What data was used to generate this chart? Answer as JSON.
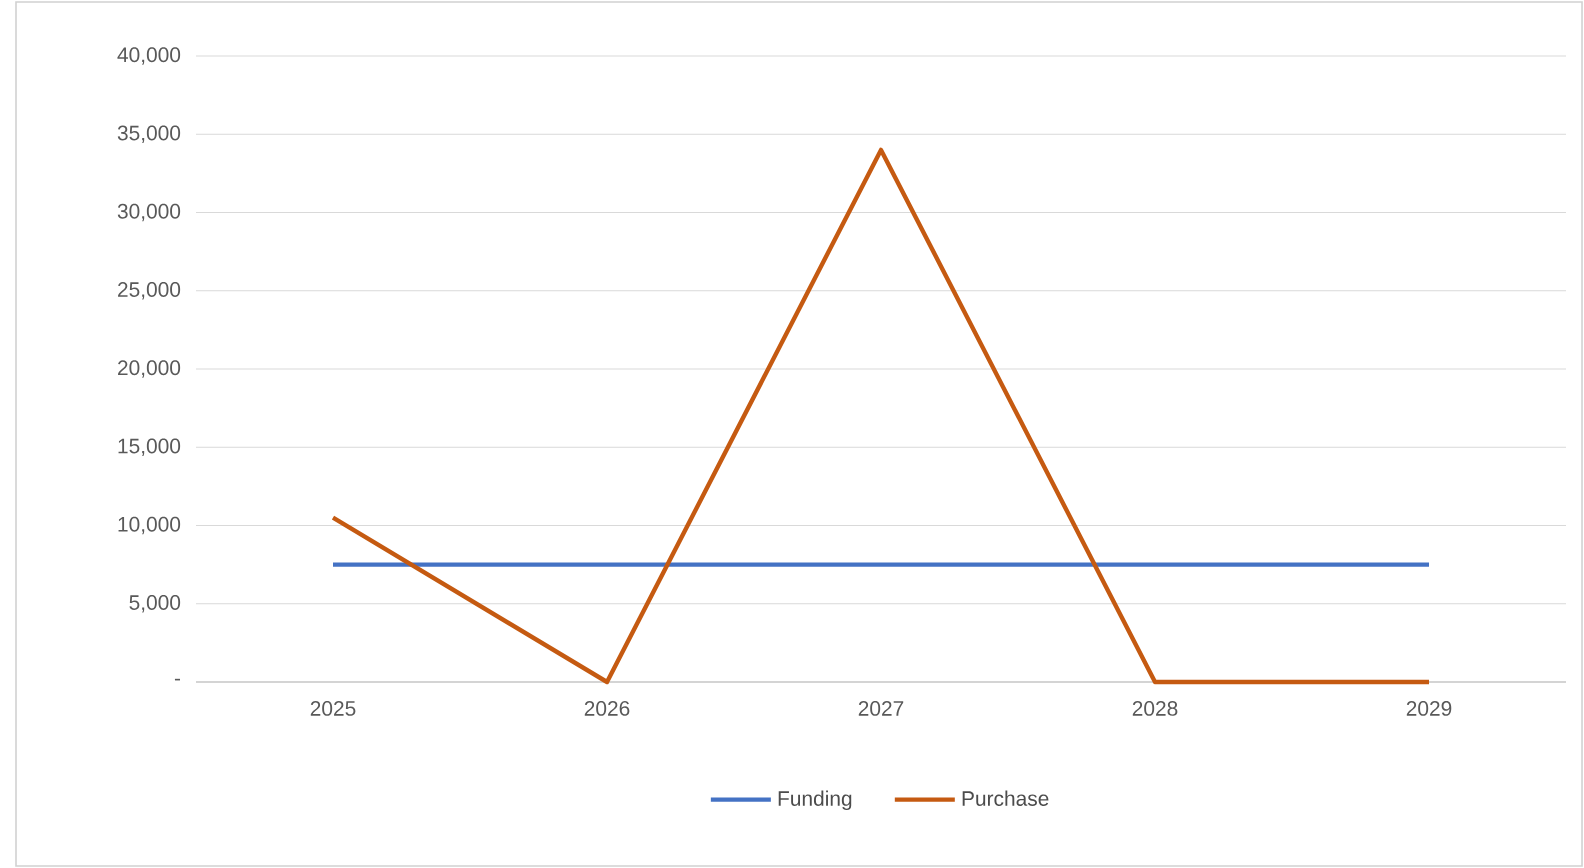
{
  "chart_data": {
    "type": "line",
    "categories": [
      "2025",
      "2026",
      "2027",
      "2028",
      "2029"
    ],
    "series": [
      {
        "name": "Funding",
        "color": "#4472c4",
        "values": [
          7500,
          7500,
          7500,
          7500,
          7500
        ]
      },
      {
        "name": "Purchase",
        "color": "#c55a11",
        "values": [
          10500,
          0,
          34000,
          0,
          0
        ]
      }
    ],
    "ylim": [
      0,
      40000
    ],
    "yticks": [
      {
        "value": 0,
        "label": "-"
      },
      {
        "value": 5000,
        "label": "5,000"
      },
      {
        "value": 10000,
        "label": "10,000"
      },
      {
        "value": 15000,
        "label": "15,000"
      },
      {
        "value": 20000,
        "label": "20,000"
      },
      {
        "value": 25000,
        "label": "25,000"
      },
      {
        "value": 30000,
        "label": "30,000"
      },
      {
        "value": 35000,
        "label": "35,000"
      },
      {
        "value": 40000,
        "label": "40,000"
      }
    ],
    "grid": "y",
    "legend": "bottom"
  }
}
